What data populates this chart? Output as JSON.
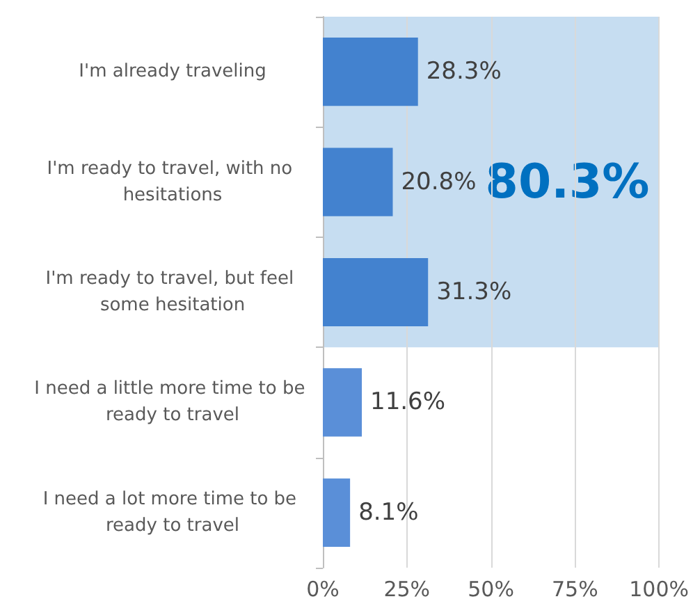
{
  "chart_data": {
    "type": "bar",
    "orientation": "horizontal",
    "categories": [
      "I'm already traveling",
      "I'm ready to travel, with no hesitations",
      "I'm ready to travel, but feel some hesitation",
      "I need a little more time to be ready to travel",
      "I need a lot more time to be ready to travel"
    ],
    "values": [
      28.3,
      20.8,
      31.3,
      11.6,
      8.1
    ],
    "colors": [
      "#4382cf",
      "#4382cf",
      "#4382cf",
      "#5a8fd8",
      "#5a8fd8"
    ],
    "value_labels": [
      "28.3%",
      "20.8%",
      "31.3%",
      "11.6%",
      "8.1%"
    ],
    "xlim": [
      0,
      100
    ],
    "xticks": [
      {
        "value": 0,
        "label": "0%"
      },
      {
        "value": 25,
        "label": "25%"
      },
      {
        "value": 50,
        "label": "50%"
      },
      {
        "value": 75,
        "label": "75%"
      },
      {
        "value": 100,
        "label": "100%"
      }
    ],
    "grid": "x",
    "bands": [
      {
        "axis": "y",
        "from": "I'm already traveling",
        "to": "I'm ready to travel, but feel some hesitation",
        "label": "80.3%",
        "color": "#c6ddf1"
      }
    ]
  }
}
